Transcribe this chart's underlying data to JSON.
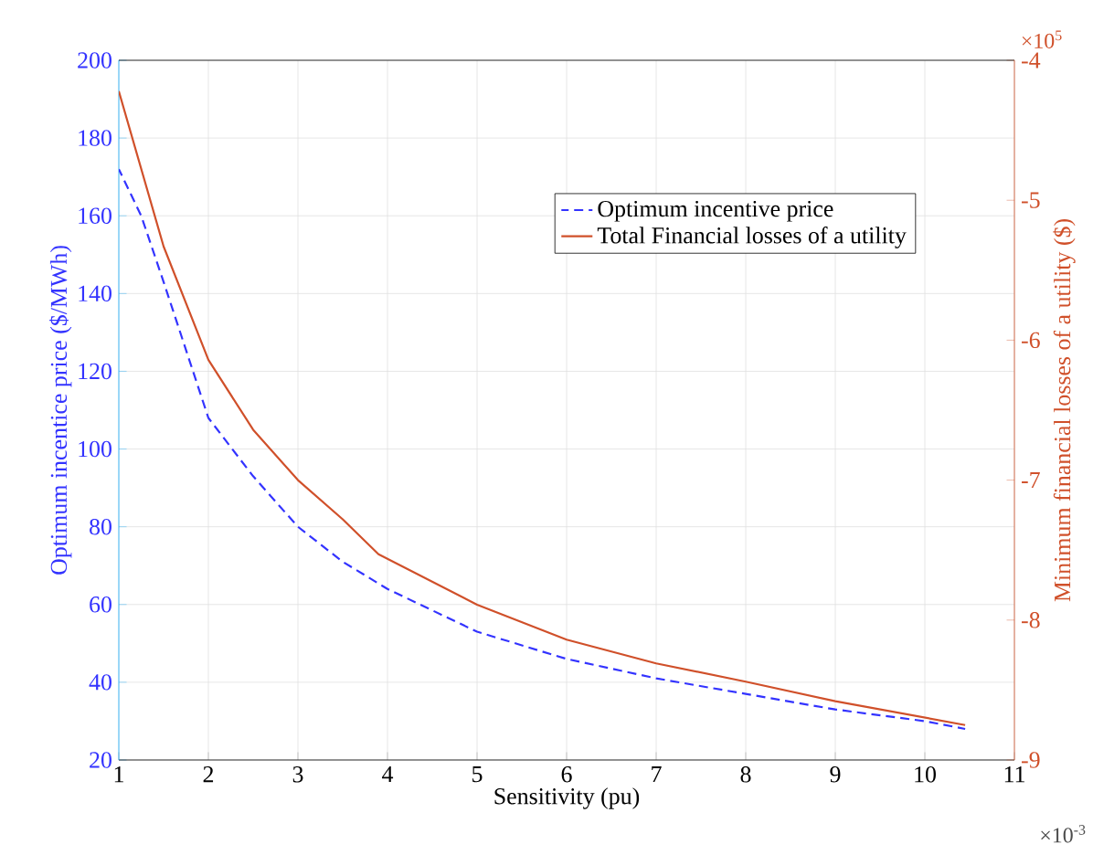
{
  "chart_data": {
    "type": "line",
    "xlabel": "Sensitivity (pu)",
    "ylabel": "Optimum incentice price ($/MWh)",
    "y2label": "Minimum financial losses of a utility ($)",
    "xlim": [
      1,
      11
    ],
    "xticks": [
      1,
      2,
      3,
      4,
      5,
      6,
      7,
      8,
      9,
      10,
      11
    ],
    "ylim": [
      20,
      200
    ],
    "yticks": [
      20,
      40,
      60,
      80,
      100,
      120,
      140,
      160,
      180,
      200
    ],
    "y2lim": [
      -9,
      -4
    ],
    "y2ticks": [
      -9,
      -8,
      -7,
      -6,
      -5,
      -4
    ],
    "grid": true,
    "legend": "top right",
    "annotations": [
      "×10$^{-3}$",
      "×10$^{5}$"
    ],
    "series": [
      {
        "name": "Optimum incentive price",
        "color": "#3333ff",
        "line_style": "dashed",
        "axis": "y",
        "x": [
          1,
          1.25,
          1.5,
          2,
          2.5,
          3,
          3.5,
          4,
          5,
          6,
          7,
          8,
          9,
          10,
          10.45
        ],
        "values": [
          172,
          160,
          143,
          108,
          93,
          80,
          71,
          64,
          53,
          46,
          41,
          37,
          33,
          30,
          28
        ]
      },
      {
        "name": "Total Financial losses of a utility",
        "color": "#d0502a",
        "line_style": "solid",
        "axis": "y2",
        "x": [
          1,
          1.5,
          2,
          2.5,
          3,
          3.5,
          3.9,
          5,
          6,
          7,
          8,
          9,
          10.45
        ],
        "values": [
          -4.22,
          -5.33,
          -6.14,
          -6.64,
          -7.0,
          -7.28,
          -7.53,
          -7.89,
          -8.14,
          -8.31,
          -8.44,
          -8.58,
          -8.75
        ]
      }
    ]
  }
}
